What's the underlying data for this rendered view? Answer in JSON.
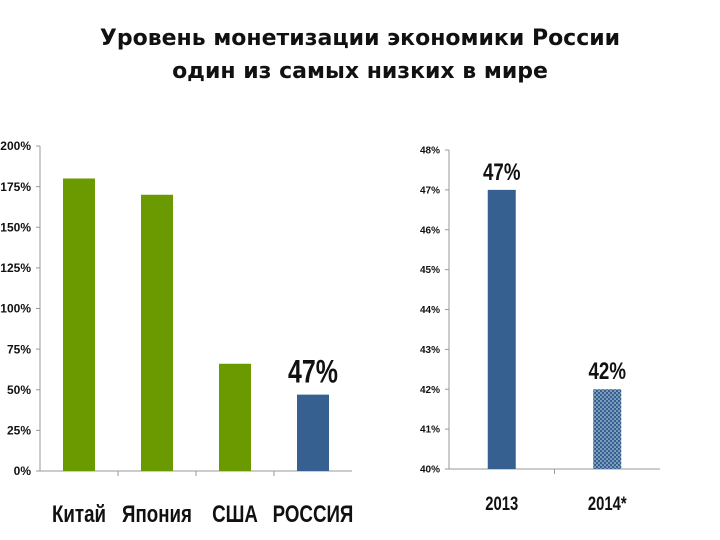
{
  "title_lines": [
    "Уровень монетизации экономики России",
    "один из самых низких в мире"
  ],
  "chart_data": [
    {
      "type": "bar",
      "title": "",
      "xlabel": "",
      "ylabel": "",
      "ylim": [
        0,
        200
      ],
      "y_ticks": [
        "0%",
        "25%",
        "50%",
        "75%",
        "100%",
        "125%",
        "150%",
        "175%",
        "200%"
      ],
      "categories": [
        "Китай",
        "Япония",
        "США",
        "РОССИЯ"
      ],
      "values": [
        180,
        170,
        66,
        47
      ],
      "colors": [
        "#6b9a00",
        "#6b9a00",
        "#6b9a00",
        "#36608f"
      ],
      "data_labels": [
        "",
        "",
        "",
        "47%"
      ],
      "grid": false
    },
    {
      "type": "bar",
      "title": "",
      "xlabel": "",
      "ylabel": "",
      "ylim": [
        40,
        48
      ],
      "y_ticks": [
        "40%",
        "41%",
        "42%",
        "43%",
        "44%",
        "45%",
        "46%",
        "47%",
        "48%"
      ],
      "categories": [
        "2013",
        "2014*"
      ],
      "values": [
        47,
        42
      ],
      "colors": [
        "#36608f",
        "#36608f"
      ],
      "patterns": [
        "solid",
        "dotted"
      ],
      "data_labels": [
        "47%",
        "42%"
      ],
      "grid": false
    }
  ]
}
